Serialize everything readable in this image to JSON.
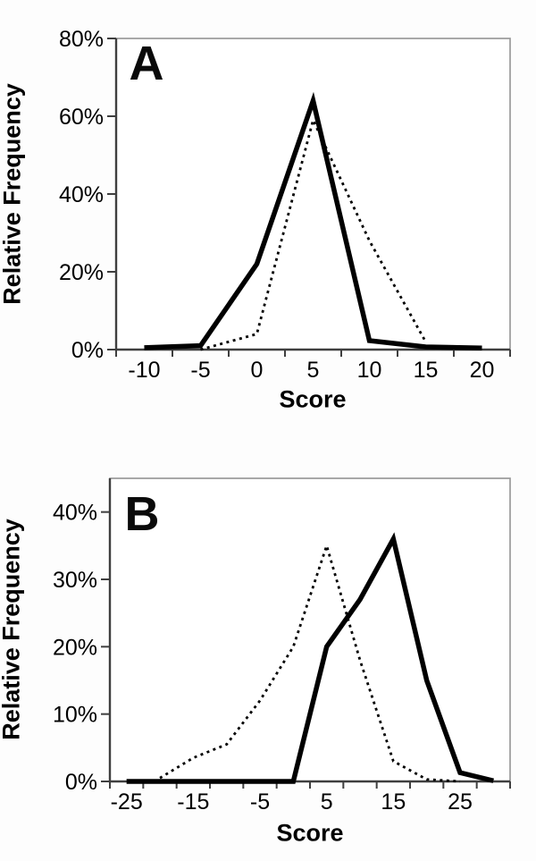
{
  "page": {
    "background": "#fdfdfd",
    "description": "Two-panel line chart figure of relative frequency distributions of scores"
  },
  "chart_data": [
    {
      "type": "line",
      "panel_label": "A",
      "title": "",
      "xlabel": "Score",
      "ylabel": "Relative Frequency",
      "categories": [
        -10,
        -5,
        0,
        5,
        10,
        15,
        20
      ],
      "series": [
        {
          "name": "dotted",
          "line_style": "dotted",
          "color": "#000000",
          "values": [
            null,
            0,
            4,
            59,
            28,
            2,
            null
          ]
        },
        {
          "name": "solid",
          "line_style": "solid",
          "color": "#000000",
          "values": [
            0.5,
            1,
            22,
            64,
            2.3,
            0.7,
            0.4
          ]
        }
      ],
      "ylim": [
        0,
        80
      ],
      "ytick_values": [
        0,
        20,
        40,
        60,
        80
      ],
      "ytick_labels": [
        "0%",
        "20%",
        "40%",
        "60%",
        "80%"
      ],
      "xtick_labels": [
        -10,
        -5,
        0,
        5,
        10,
        15,
        20
      ],
      "grid": false,
      "legend": "none"
    },
    {
      "type": "line",
      "panel_label": "B",
      "title": "",
      "xlabel": "Score",
      "ylabel": "Relative Frequency",
      "categories": [
        -25,
        -20,
        -15,
        -10,
        -5,
        0,
        5,
        10,
        15,
        20,
        25,
        30
      ],
      "series": [
        {
          "name": "dotted",
          "line_style": "dotted",
          "color": "#000000",
          "values": [
            null,
            0.5,
            3.5,
            5.5,
            12,
            20,
            35,
            18,
            3,
            0.3,
            0,
            null
          ]
        },
        {
          "name": "solid",
          "line_style": "solid",
          "color": "#000000",
          "values": [
            0,
            0,
            0,
            0,
            0,
            0,
            20,
            27,
            36,
            15,
            1.3,
            0.1
          ]
        }
      ],
      "ylim": [
        0,
        45
      ],
      "ytick_values": [
        0,
        10,
        20,
        30,
        40
      ],
      "ytick_labels": [
        "0%",
        "10%",
        "20%",
        "30%",
        "40%"
      ],
      "xtick_labels": [
        -25,
        -15,
        -5,
        5,
        15,
        25
      ],
      "grid": false,
      "legend": "none"
    }
  ]
}
